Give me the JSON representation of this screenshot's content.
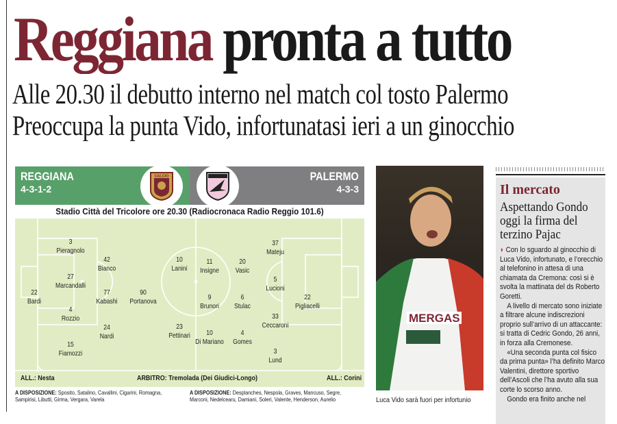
{
  "headline": {
    "part1": "Reggiana",
    "part2": "pronta a tutto"
  },
  "subheadlines": [
    "Alle 20.30 il debutto interno nel match col tosto Palermo",
    "Preoccupa la punta Vido, infortunatasi ieri a un ginocchio"
  ],
  "lineup": {
    "home": {
      "name": "REGGIANA",
      "formation": "4-3-1-2",
      "color": "#58a06a",
      "coach": "ALL.: Nesta",
      "players": [
        {
          "n": "3",
          "name": "Pieragnolo"
        },
        {
          "n": "42",
          "name": "Bianco"
        },
        {
          "n": "27",
          "name": "Marcandalli"
        },
        {
          "n": "22",
          "name": "Bardi"
        },
        {
          "n": "77",
          "name": "Kabashi"
        },
        {
          "n": "90",
          "name": "Portanova"
        },
        {
          "n": "4",
          "name": "Rozzio"
        },
        {
          "n": "24",
          "name": "Nardi"
        },
        {
          "n": "15",
          "name": "Fiamozzi"
        },
        {
          "n": "10",
          "name": "Lanini"
        },
        {
          "n": "23",
          "name": "Pettinari"
        }
      ],
      "bench_label": "A DISPOSIZIONE:",
      "bench": "Sposito, Satalino, Cavallini, Cigarini, Romagna, Sampirisi, Libutti, Girma, Vergara, Varela"
    },
    "away": {
      "name": "PALERMO",
      "formation": "4-3-3",
      "color": "#7f7f81",
      "coach": "ALL.: Corini",
      "players": [
        {
          "n": "11",
          "name": "Insigne"
        },
        {
          "n": "9",
          "name": "Brunori"
        },
        {
          "n": "10",
          "name": "Di Mariano"
        },
        {
          "n": "20",
          "name": "Vasic"
        },
        {
          "n": "6",
          "name": "Stulac"
        },
        {
          "n": "4",
          "name": "Gomes"
        },
        {
          "n": "37",
          "name": "Mateju"
        },
        {
          "n": "5",
          "name": "Lucioni"
        },
        {
          "n": "33",
          "name": "Ceccaroni"
        },
        {
          "n": "3",
          "name": "Lund"
        },
        {
          "n": "22",
          "name": "Pigliacelli"
        }
      ],
      "bench_label": "A DISPOSIZIONE:",
      "bench": "Desplanches, Nespola, Graves, Mancuso, Segre, Marconi, Nedelcearu, Damiani, Soleri, Valente, Henderson, Aurelio"
    },
    "stadium": "Stadio Città del Tricolore ore 20.30 (Radiocronaca Radio Reggio 101.6)",
    "referee": "ARBITRO: Tremolada (Dei Giudici-Longo)",
    "home_crest_text": "CALCIO"
  },
  "photo": {
    "caption": "Luca Vido sarà fuori per infortunio",
    "shirt_text": "MERGAS"
  },
  "sidebar": {
    "kicker": "Il mercato",
    "title": "Aspettando Gondo oggi la firma del terzino Pajac",
    "paragraphs": [
      "Con lo sguardo al ginocchio di Luca Vido, infortunato, e l’orecchio al telefonino in attesa di una chiamata da Cremona: così si è svolta la mattinata del ds Roberto Goretti.",
      "A livello di mercato sono iniziate a filtrare alcune indiscrezioni proprio sull’arrivo di un attaccante: si tratta di Cedric Gondo, 26 anni, in forza alla Cremonese.",
      "«Una seconda punta col fisico da prima punta» l’ha definito Marco Valentini, direttore sportivo dell’Ascoli che l’ha avuto alla sua corte lo scorso anno.",
      "Gondo era finito anche nel"
    ]
  }
}
